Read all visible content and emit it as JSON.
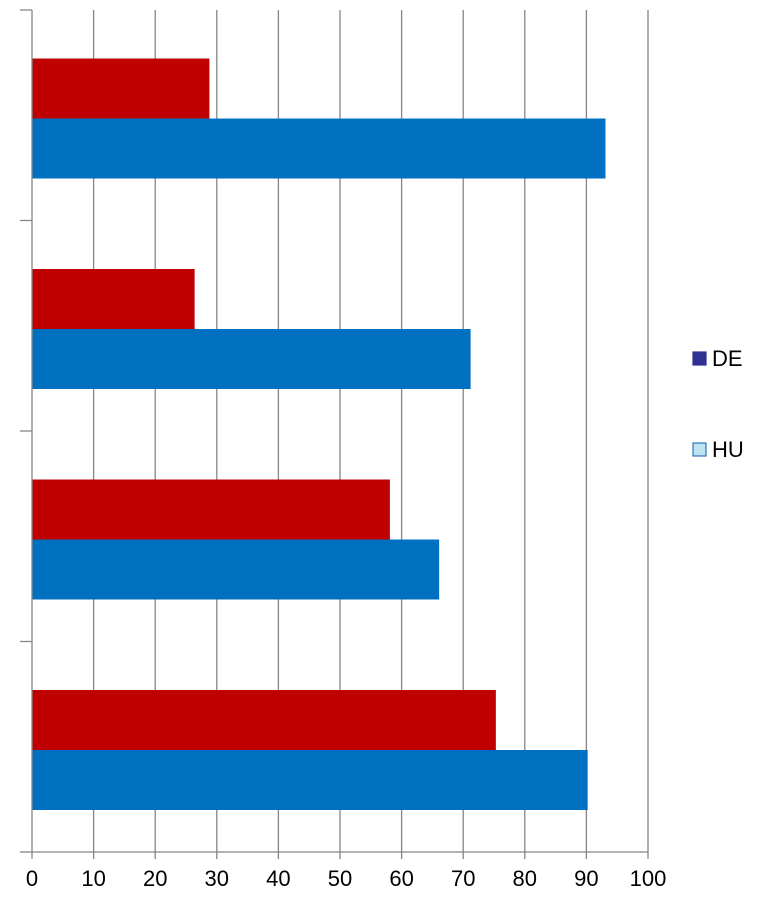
{
  "chart_data": {
    "type": "bar",
    "orientation": "horizontal",
    "xlim": [
      0,
      100
    ],
    "xticks": [
      0,
      10,
      20,
      30,
      40,
      50,
      60,
      70,
      80,
      90,
      100
    ],
    "grid": true,
    "legend_position": "right",
    "category_count": 4,
    "series": [
      {
        "name": "DE",
        "legend_color": "#2e3192",
        "bar_color": "#c00000",
        "values": [
          75.3,
          58.1,
          26.4,
          28.8
        ]
      },
      {
        "name": "HU",
        "legend_color": "#bfe3f0",
        "bar_color": "#0070c0",
        "values": [
          90.2,
          66.1,
          71.2,
          93.1
        ]
      }
    ]
  }
}
